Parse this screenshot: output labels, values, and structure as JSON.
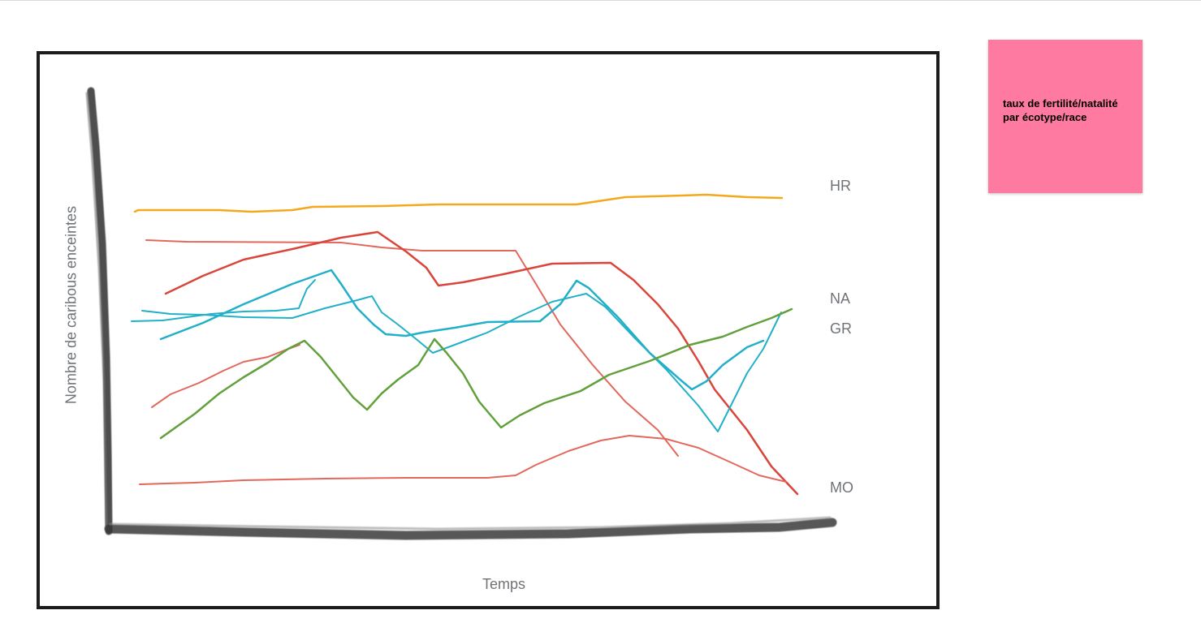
{
  "canvas": {
    "y_axis_label": "Nombre de caribous enceintes",
    "x_axis_label": "Temps",
    "series_labels": {
      "hr": "HR",
      "na": "NA",
      "gr": "GR",
      "mo": "MO"
    },
    "colors": {
      "orange": "#f4a81d",
      "red": "#d9453b",
      "salmon": "#e2685c",
      "teal": "#22b0c8",
      "green": "#62a03c",
      "axis": "#3a3a3a",
      "frame": "#1c1c1c"
    }
  },
  "sticky_note": {
    "text": "taux de fertilité/natalité par écotype/race",
    "color": "#ff7aa0"
  }
}
